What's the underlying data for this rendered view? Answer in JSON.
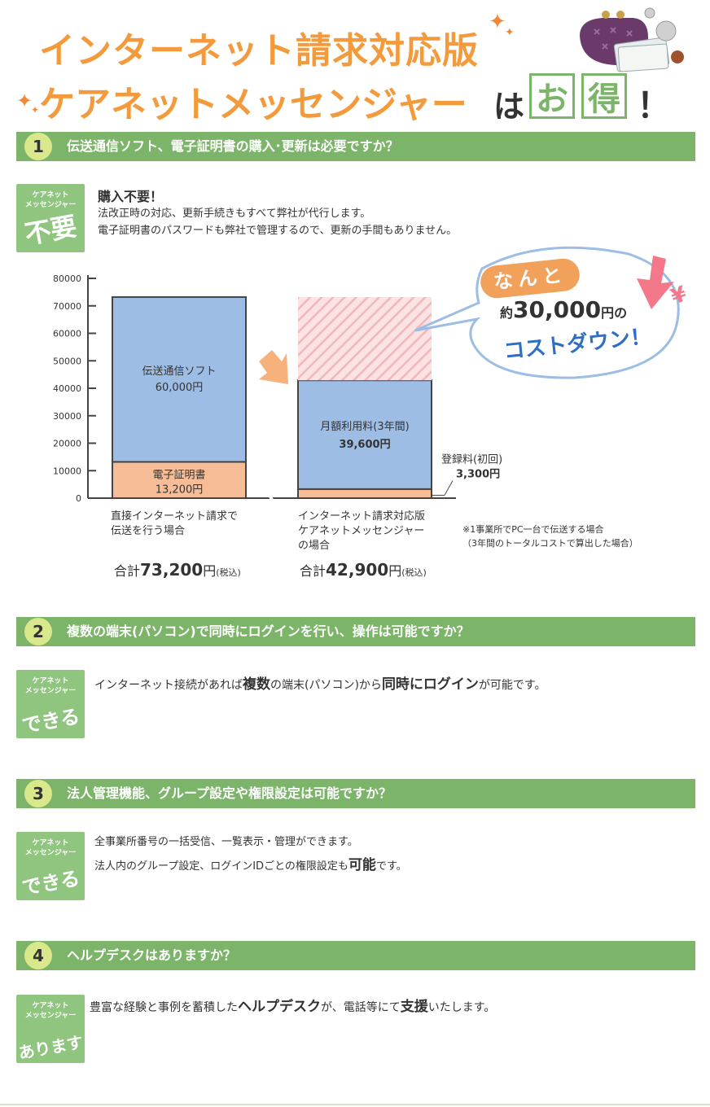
{
  "header": {
    "line1": "インターネット請求対応版",
    "line2": "ケアネットメッセンジャー",
    "ha": "は",
    "otoku": [
      "お",
      "得"
    ],
    "excl": "！"
  },
  "sections": [
    {
      "num": "1",
      "question": "伝送通信ソフト、電子証明書の購入･更新は必要ですか？",
      "badge_top": "ケアネット\nメッセンジャー",
      "badge_main": "不要",
      "heading": "購入不要！",
      "lines": [
        "法改正時の対応、更新手続きもすべて弊社が代行します。",
        "電子証明書のパスワードも弊社で管理するので、更新の手間もありません。"
      ]
    },
    {
      "num": "2",
      "question": "複数の端末(パソコン)で同時にログインを行い、操作は可能ですか？",
      "badge_main": "できる",
      "text_parts": [
        "インターネット接続があれば",
        "複数",
        "の端末(パソコン)から",
        "同時にログイン",
        "が可能です。"
      ]
    },
    {
      "num": "3",
      "question": "法人管理機能、グループ設定や権限設定は可能ですか？",
      "badge_main": "できる",
      "line1": "全事業所番号の一括受信、一覧表示・管理ができます。",
      "line2_parts": [
        "法人内のグループ設定、ログインIDごとの権限設定も",
        "可能",
        "です。"
      ]
    },
    {
      "num": "4",
      "question": "ヘルプデスクはありますか？",
      "badge_main": "あります",
      "text_parts": [
        "豊富な経験と事例を蓄積した",
        "ヘルプデスク",
        "が、電話等にて",
        "支援",
        "いたします。"
      ]
    }
  ],
  "badge_label_top1": "ケアネット",
  "badge_label_top2": "メッセンジャー",
  "chart_data": {
    "type": "bar",
    "stacked": true,
    "ylim": [
      0,
      80000
    ],
    "yticks": [
      0,
      10000,
      20000,
      30000,
      40000,
      50000,
      60000,
      70000,
      80000
    ],
    "ytick_labels": [
      "0",
      "10000",
      "20000",
      "30000",
      "40000",
      "50000",
      "60000",
      "70000",
      "80000"
    ],
    "categories": [
      {
        "label_lines": [
          "直接インターネット請求で",
          "伝送を行う場合"
        ],
        "total_prefix": "合計",
        "total_value": "73,200",
        "total_suffix": "円",
        "tax": "(税込)"
      },
      {
        "label_lines": [
          "インターネット請求対応版",
          "ケアネットメッセンジャー",
          "の場合"
        ],
        "total_prefix": "合計",
        "total_value": "42,900",
        "total_suffix": "円",
        "tax": "(税込)"
      }
    ],
    "series": [
      {
        "label": "電子証明書",
        "value_label": "13,200円",
        "values": [
          13200,
          0
        ],
        "color": "#f6bd97"
      },
      {
        "label": "伝送通信ソフト",
        "value_label": "60,000円",
        "values": [
          60000,
          0
        ],
        "color": "#9dbde4"
      },
      {
        "label": "登録料(初回)",
        "value_label": "3,300円",
        "values": [
          0,
          3300
        ],
        "color": "#f6bd97"
      },
      {
        "label": "月額利用料(3年間)",
        "value_label": "39,600円",
        "values": [
          0,
          39600
        ],
        "color": "#9dbde4"
      },
      {
        "label": "saving",
        "values": [
          0,
          30300
        ],
        "color": "#f7c5c8"
      }
    ],
    "note_lines": [
      "※1事業所でPC一台で伝送する場合",
      "（3年間のトータルコストで算出した場合）"
    ],
    "bubble": {
      "nanto": "なんと",
      "prefix": "約",
      "amount": "30,000",
      "unit": "円の",
      "down": "コストダウン！"
    }
  }
}
